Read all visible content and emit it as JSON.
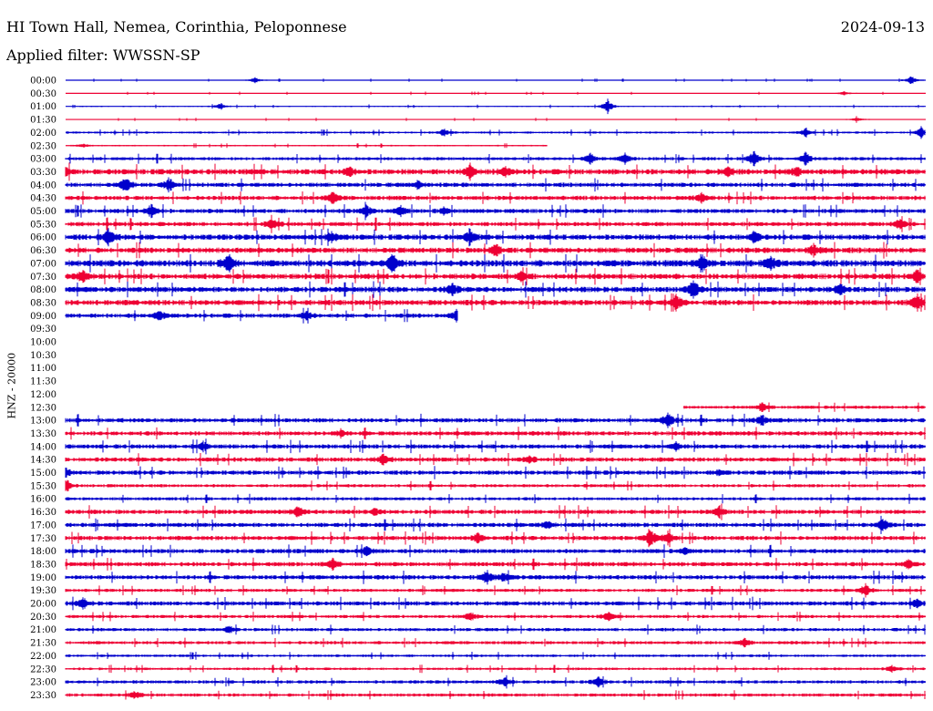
{
  "header": {
    "title": "HI Town Hall, Nemea, Corinthia, Peloponnese",
    "date": "2024-09-13",
    "filter": "Applied filter: WWSSN-SP"
  },
  "chart_data": {
    "type": "line",
    "title": "HI Town Hall, Nemea, Corinthia, Peloponnese",
    "ylabel": "HNZ - 20000",
    "xlabel": "",
    "row_labels": [
      "00:00",
      "00:30",
      "01:00",
      "01:30",
      "02:00",
      "02:30",
      "03:00",
      "03:30",
      "04:00",
      "04:30",
      "05:00",
      "05:30",
      "06:00",
      "06:30",
      "07:00",
      "07:30",
      "08:00",
      "08:30",
      "09:00",
      "09:30",
      "10:00",
      "10:30",
      "11:00",
      "11:30",
      "12:00",
      "12:30",
      "13:00",
      "13:30",
      "14:00",
      "14:30",
      "15:00",
      "15:30",
      "16:00",
      "16:30",
      "17:00",
      "17:30",
      "18:00",
      "18:30",
      "19:00",
      "19:30",
      "20:00",
      "20:30",
      "21:00",
      "21:30",
      "22:00",
      "22:30",
      "23:00",
      "23:30"
    ],
    "series_colors": [
      "#0000cc",
      "#ee0033"
    ],
    "rows": [
      {
        "start": 0.0,
        "end": 1.0,
        "noise": 0.5,
        "events": [
          [
            0.22,
            3
          ],
          [
            0.983,
            5
          ]
        ]
      },
      {
        "start": 0.0,
        "end": 1.0,
        "noise": 0.5,
        "events": [
          [
            0.905,
            2
          ]
        ]
      },
      {
        "start": 0.0,
        "end": 1.0,
        "noise": 0.6,
        "events": [
          [
            0.18,
            3
          ],
          [
            0.63,
            8
          ]
        ]
      },
      {
        "start": 0.0,
        "end": 1.0,
        "noise": 0.5,
        "events": [
          [
            0.92,
            2
          ]
        ]
      },
      {
        "start": 0.0,
        "end": 1.0,
        "noise": 1.0,
        "events": [
          [
            0.44,
            4
          ],
          [
            0.86,
            4
          ],
          [
            0.995,
            6
          ]
        ]
      },
      {
        "start": 0.0,
        "end": 0.56,
        "noise": 0.7,
        "events": [
          [
            0.02,
            2
          ]
        ]
      },
      {
        "start": 0.0,
        "end": 1.0,
        "noise": 1.5,
        "events": [
          [
            0.61,
            6
          ],
          [
            0.65,
            6
          ],
          [
            0.8,
            8
          ],
          [
            0.86,
            7
          ]
        ]
      },
      {
        "start": 0.0,
        "end": 1.0,
        "noise": 2.5,
        "events": [
          [
            0.0,
            4
          ],
          [
            0.33,
            5
          ],
          [
            0.47,
            7
          ],
          [
            0.51,
            5
          ],
          [
            0.77,
            5
          ],
          [
            0.85,
            5
          ]
        ]
      },
      {
        "start": 0.0,
        "end": 1.0,
        "noise": 2.0,
        "events": [
          [
            0.07,
            8
          ],
          [
            0.12,
            8
          ],
          [
            0.41,
            5
          ]
        ]
      },
      {
        "start": 0.0,
        "end": 1.0,
        "noise": 2.0,
        "events": [
          [
            0.31,
            7
          ],
          [
            0.74,
            5
          ]
        ]
      },
      {
        "start": 0.0,
        "end": 1.0,
        "noise": 2.0,
        "events": [
          [
            0.1,
            7
          ],
          [
            0.35,
            6
          ],
          [
            0.39,
            5
          ],
          [
            0.44,
            4
          ]
        ]
      },
      {
        "start": 0.0,
        "end": 1.0,
        "noise": 2.0,
        "events": [
          [
            0.24,
            6
          ],
          [
            0.97,
            6
          ]
        ]
      },
      {
        "start": 0.0,
        "end": 1.0,
        "noise": 2.5,
        "events": [
          [
            0.05,
            9
          ],
          [
            0.31,
            6
          ],
          [
            0.47,
            8
          ],
          [
            0.8,
            7
          ]
        ]
      },
      {
        "start": 0.0,
        "end": 1.0,
        "noise": 2.5,
        "events": [
          [
            0.5,
            7
          ],
          [
            0.87,
            6
          ]
        ]
      },
      {
        "start": 0.0,
        "end": 1.0,
        "noise": 3.0,
        "events": [
          [
            0.19,
            11
          ],
          [
            0.38,
            9
          ],
          [
            0.74,
            8
          ],
          [
            0.82,
            7
          ]
        ]
      },
      {
        "start": 0.0,
        "end": 1.0,
        "noise": 2.5,
        "events": [
          [
            0.02,
            6
          ],
          [
            0.53,
            5
          ],
          [
            0.99,
            7
          ]
        ]
      },
      {
        "start": 0.0,
        "end": 1.0,
        "noise": 2.5,
        "events": [
          [
            0.45,
            6
          ],
          [
            0.73,
            11
          ],
          [
            0.9,
            6
          ]
        ]
      },
      {
        "start": 0.0,
        "end": 1.0,
        "noise": 2.5,
        "events": [
          [
            0.71,
            7
          ],
          [
            0.99,
            9
          ]
        ]
      },
      {
        "start": 0.0,
        "end": 0.456,
        "noise": 2.0,
        "events": [
          [
            0.11,
            6
          ],
          [
            0.28,
            5
          ],
          [
            0.455,
            6
          ]
        ]
      },
      {
        "start": 0.0,
        "end": 0.0,
        "noise": 0,
        "events": []
      },
      {
        "start": 0.0,
        "end": 0.0,
        "noise": 0,
        "events": []
      },
      {
        "start": 0.0,
        "end": 0.0,
        "noise": 0,
        "events": []
      },
      {
        "start": 0.0,
        "end": 0.0,
        "noise": 0,
        "events": []
      },
      {
        "start": 0.0,
        "end": 0.0,
        "noise": 0,
        "events": []
      },
      {
        "start": 0.0,
        "end": 0.0,
        "noise": 0,
        "events": []
      },
      {
        "start": 0.718,
        "end": 1.0,
        "noise": 1.5,
        "events": [
          [
            0.81,
            5
          ]
        ]
      },
      {
        "start": 0.0,
        "end": 1.0,
        "noise": 2.0,
        "events": [
          [
            0.7,
            8
          ],
          [
            0.81,
            5
          ]
        ]
      },
      {
        "start": 0.0,
        "end": 1.0,
        "noise": 2.0,
        "events": [
          [
            0.32,
            4
          ]
        ]
      },
      {
        "start": 0.0,
        "end": 1.0,
        "noise": 2.0,
        "events": [
          [
            0.16,
            4
          ],
          [
            0.71,
            4
          ]
        ]
      },
      {
        "start": 0.0,
        "end": 1.0,
        "noise": 2.0,
        "events": [
          [
            0.37,
            6
          ],
          [
            0.54,
            4
          ]
        ]
      },
      {
        "start": 0.0,
        "end": 1.0,
        "noise": 2.0,
        "events": [
          [
            0.0,
            4
          ],
          [
            0.76,
            4
          ]
        ]
      },
      {
        "start": 0.0,
        "end": 1.0,
        "noise": 1.5,
        "events": [
          [
            0.0,
            8
          ]
        ]
      },
      {
        "start": 0.0,
        "end": 1.0,
        "noise": 1.5,
        "events": []
      },
      {
        "start": 0.0,
        "end": 1.0,
        "noise": 2.0,
        "events": [
          [
            0.27,
            6
          ],
          [
            0.36,
            4
          ],
          [
            0.76,
            6
          ]
        ]
      },
      {
        "start": 0.0,
        "end": 1.0,
        "noise": 2.0,
        "events": [
          [
            0.56,
            4
          ],
          [
            0.95,
            7
          ]
        ]
      },
      {
        "start": 0.0,
        "end": 1.0,
        "noise": 2.0,
        "events": [
          [
            0.48,
            5
          ],
          [
            0.68,
            10
          ],
          [
            0.7,
            6
          ]
        ]
      },
      {
        "start": 0.0,
        "end": 1.0,
        "noise": 2.0,
        "events": [
          [
            0.35,
            5
          ],
          [
            0.72,
            4
          ]
        ]
      },
      {
        "start": 0.0,
        "end": 1.0,
        "noise": 2.0,
        "events": [
          [
            0.31,
            6
          ],
          [
            0.98,
            5
          ]
        ]
      },
      {
        "start": 0.0,
        "end": 1.0,
        "noise": 2.0,
        "events": [
          [
            0.49,
            8
          ],
          [
            0.51,
            4
          ]
        ]
      },
      {
        "start": 0.0,
        "end": 1.0,
        "noise": 1.5,
        "events": [
          [
            0.93,
            7
          ]
        ]
      },
      {
        "start": 0.0,
        "end": 1.0,
        "noise": 2.0,
        "events": [
          [
            0.02,
            6
          ],
          [
            0.99,
            4
          ]
        ]
      },
      {
        "start": 0.0,
        "end": 1.0,
        "noise": 1.5,
        "events": [
          [
            0.47,
            5
          ],
          [
            0.63,
            5
          ]
        ]
      },
      {
        "start": 0.0,
        "end": 1.0,
        "noise": 1.5,
        "events": [
          [
            0.19,
            4
          ]
        ]
      },
      {
        "start": 0.0,
        "end": 1.0,
        "noise": 1.5,
        "events": [
          [
            0.79,
            4
          ]
        ]
      },
      {
        "start": 0.0,
        "end": 1.0,
        "noise": 1.2,
        "events": []
      },
      {
        "start": 0.0,
        "end": 1.0,
        "noise": 1.2,
        "events": [
          [
            0.96,
            4
          ]
        ]
      },
      {
        "start": 0.0,
        "end": 1.0,
        "noise": 1.5,
        "events": [
          [
            0.51,
            5
          ],
          [
            0.62,
            6
          ]
        ]
      },
      {
        "start": 0.0,
        "end": 1.0,
        "noise": 1.5,
        "events": [
          [
            0.08,
            4
          ]
        ]
      }
    ]
  }
}
